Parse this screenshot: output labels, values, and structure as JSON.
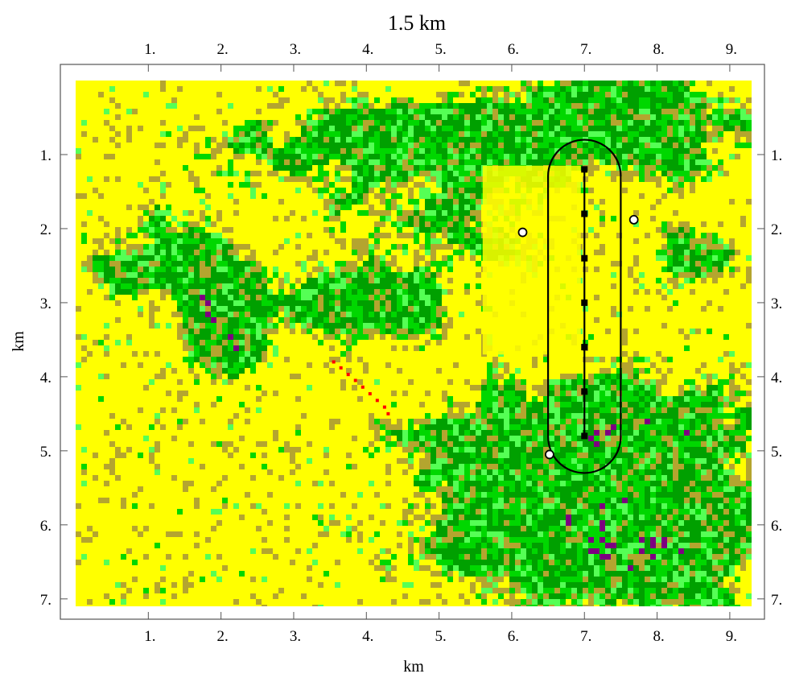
{
  "title": "1.5 km",
  "x_axis": {
    "label": "km",
    "ticks": [
      1,
      2,
      3,
      4,
      5,
      6,
      7,
      8,
      9
    ],
    "tick_labels": [
      "1.",
      "2.",
      "3.",
      "4.",
      "5.",
      "6.",
      "7.",
      "8.",
      "9."
    ]
  },
  "y_axis": {
    "label": "km",
    "ticks": [
      1,
      2,
      3,
      4,
      5,
      6,
      7
    ],
    "tick_labels": [
      "1.",
      "2.",
      "3.",
      "4.",
      "5.",
      "6.",
      "7."
    ],
    "direction": "downward"
  },
  "extent": {
    "x": [
      0,
      9.3
    ],
    "y": [
      0,
      7.1
    ]
  },
  "map": {
    "type": "land-cover raster",
    "colors": {
      "background": "#ffff00",
      "olive": "#b4a52f",
      "green": "#00d700",
      "light_green": "#55ff55",
      "dark_green": "#00a000",
      "purple": "#7d0080",
      "black": "#000000",
      "red": "#ff0000",
      "outline": "#000000"
    },
    "track": {
      "points": [
        {
          "x": 7.0,
          "y": 1.2
        },
        {
          "x": 7.0,
          "y": 1.8
        },
        {
          "x": 7.0,
          "y": 2.4
        },
        {
          "x": 7.0,
          "y": 3.0
        },
        {
          "x": 7.0,
          "y": 3.6
        },
        {
          "x": 7.0,
          "y": 4.2
        },
        {
          "x": 7.0,
          "y": 4.8
        }
      ]
    },
    "coverage_area": {
      "center_x": 7.0,
      "y_top": 0.8,
      "y_bottom": 5.3,
      "half_width": 0.5
    },
    "stations": [
      {
        "x": 6.15,
        "y": 2.05
      },
      {
        "x": 7.68,
        "y": 1.88
      },
      {
        "x": 6.52,
        "y": 5.05
      }
    ],
    "red_dots": [
      {
        "x": 3.55,
        "y": 3.8
      },
      {
        "x": 3.65,
        "y": 3.88
      },
      {
        "x": 3.75,
        "y": 3.97
      },
      {
        "x": 3.85,
        "y": 4.05
      },
      {
        "x": 3.95,
        "y": 4.14
      },
      {
        "x": 4.05,
        "y": 4.23
      },
      {
        "x": 4.15,
        "y": 4.32
      },
      {
        "x": 4.25,
        "y": 4.41
      },
      {
        "x": 4.3,
        "y": 4.5
      }
    ]
  }
}
